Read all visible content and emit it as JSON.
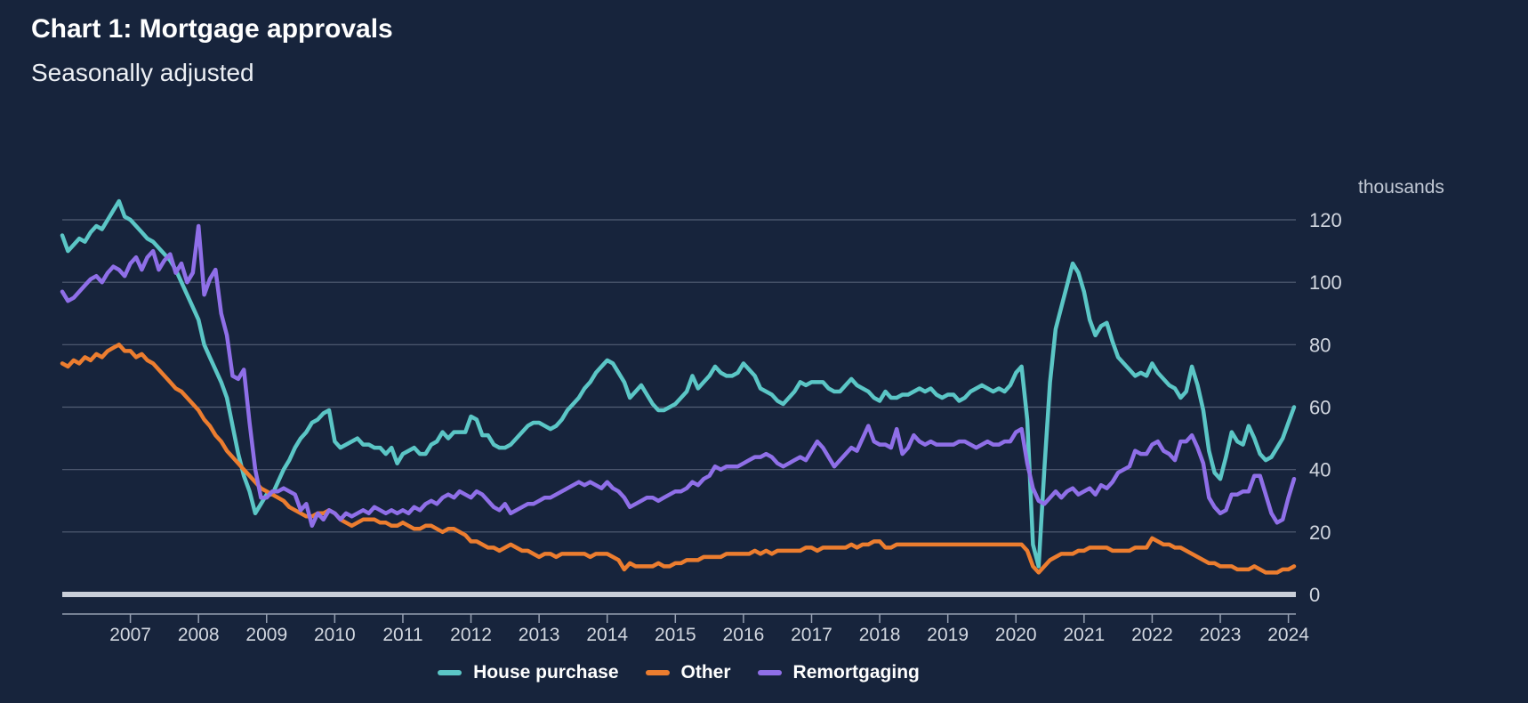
{
  "page": {
    "title": "Chart 1: Mortgage approvals",
    "subtitle": "Seasonally adjusted",
    "unit_label": "thousands"
  },
  "colors": {
    "background": "#17243C",
    "grid": "#535E74",
    "zero_line": "#C9CED8",
    "axis": "#96A0B2",
    "tick_label": "#D2D7E0",
    "teal": "#5BC6C6",
    "orange": "#EC7D2F",
    "purple": "#8F6FE8"
  },
  "legend": {
    "items": [
      {
        "label": "House purchase"
      },
      {
        "label": "Other"
      },
      {
        "label": "Remortgaging"
      }
    ]
  },
  "chart_data": {
    "type": "line",
    "title": "Chart 1: Mortgage approvals",
    "subtitle": "Seasonally adjusted",
    "y_unit": "thousands",
    "ylim": [
      0,
      120
    ],
    "yticks": [
      0,
      20,
      40,
      60,
      80,
      100,
      120
    ],
    "x_tick_labels": [
      "2007",
      "2008",
      "2009",
      "2010",
      "2011",
      "2012",
      "2013",
      "2014",
      "2015",
      "2016",
      "2017",
      "2018",
      "2019",
      "2020",
      "2021",
      "2022",
      "2023",
      "2024"
    ],
    "x_start": "2006-01",
    "x_end": "2024-02",
    "frequency": "monthly",
    "grid": true,
    "legend_position": "bottom",
    "series": [
      {
        "name": "House purchase",
        "color": "#5BC6C6",
        "values": [
          115,
          110,
          112,
          114,
          113,
          116,
          118,
          117,
          120,
          123,
          126,
          121,
          120,
          118,
          116,
          114,
          113,
          111,
          109,
          107,
          104,
          100,
          96,
          92,
          88,
          80,
          76,
          72,
          68,
          63,
          54,
          45,
          38,
          33,
          26,
          29,
          32,
          32,
          36,
          40,
          43,
          47,
          50,
          52,
          55,
          56,
          58,
          59,
          49,
          47,
          48,
          49,
          50,
          48,
          48,
          47,
          47,
          45,
          47,
          42,
          45,
          46,
          47,
          45,
          45,
          48,
          49,
          52,
          50,
          52,
          52,
          52,
          57,
          56,
          51,
          51,
          48,
          47,
          47,
          48,
          50,
          52,
          54,
          55,
          55,
          54,
          53,
          54,
          56,
          59,
          61,
          63,
          66,
          68,
          71,
          73,
          75,
          74,
          71,
          68,
          63,
          65,
          67,
          64,
          61,
          59,
          59,
          60,
          61,
          63,
          65,
          70,
          66,
          68,
          70,
          73,
          71,
          70,
          70,
          71,
          74,
          72,
          70,
          66,
          65,
          64,
          62,
          61,
          63,
          65,
          68,
          67,
          68,
          68,
          68,
          66,
          65,
          65,
          67,
          69,
          67,
          66,
          65,
          63,
          62,
          65,
          63,
          63,
          64,
          64,
          65,
          66,
          65,
          66,
          64,
          63,
          64,
          64,
          62,
          63,
          65,
          66,
          67,
          66,
          65,
          66,
          65,
          67,
          71,
          73,
          56,
          16,
          9,
          40,
          68,
          85,
          92,
          99,
          106,
          103,
          97,
          88,
          83,
          86,
          87,
          81,
          76,
          74,
          72,
          70,
          71,
          70,
          74,
          71,
          69,
          67,
          66,
          63,
          65,
          73,
          67,
          59,
          46,
          39,
          37,
          44,
          52,
          49,
          48,
          54,
          50,
          45,
          43,
          44,
          47,
          50,
          55,
          60
        ]
      },
      {
        "name": "Other",
        "color": "#EC7D2F",
        "values": [
          74,
          73,
          75,
          74,
          76,
          75,
          77,
          76,
          78,
          79,
          80,
          78,
          78,
          76,
          77,
          75,
          74,
          72,
          70,
          68,
          66,
          65,
          63,
          61,
          59,
          56,
          54,
          51,
          49,
          46,
          44,
          42,
          40,
          38,
          36,
          34,
          33,
          32,
          31,
          30,
          28,
          27,
          26,
          25,
          25,
          26,
          26,
          27,
          26,
          24,
          23,
          22,
          23,
          24,
          24,
          24,
          23,
          23,
          22,
          22,
          23,
          22,
          21,
          21,
          22,
          22,
          21,
          20,
          21,
          21,
          20,
          19,
          17,
          17,
          16,
          15,
          15,
          14,
          15,
          16,
          15,
          14,
          14,
          13,
          12,
          13,
          13,
          12,
          13,
          13,
          13,
          13,
          13,
          12,
          13,
          13,
          13,
          12,
          11,
          8,
          10,
          9,
          9,
          9,
          9,
          10,
          9,
          9,
          10,
          10,
          11,
          11,
          11,
          12,
          12,
          12,
          12,
          13,
          13,
          13,
          13,
          13,
          14,
          13,
          14,
          13,
          14,
          14,
          14,
          14,
          14,
          15,
          15,
          14,
          15,
          15,
          15,
          15,
          15,
          16,
          15,
          16,
          16,
          17,
          17,
          15,
          15,
          16,
          16,
          16,
          16,
          16,
          16,
          16,
          16,
          16,
          16,
          16,
          16,
          16,
          16,
          16,
          16,
          16,
          16,
          16,
          16,
          16,
          16,
          16,
          14,
          9,
          7,
          9,
          11,
          12,
          13,
          13,
          13,
          14,
          14,
          15,
          15,
          15,
          15,
          14,
          14,
          14,
          14,
          15,
          15,
          15,
          18,
          17,
          16,
          16,
          15,
          15,
          14,
          13,
          12,
          11,
          10,
          10,
          9,
          9,
          9,
          8,
          8,
          8,
          9,
          8,
          7,
          7,
          7,
          8,
          8,
          9
        ]
      },
      {
        "name": "Remortgaging",
        "color": "#8F6FE8",
        "values": [
          97,
          94,
          95,
          97,
          99,
          101,
          102,
          100,
          103,
          105,
          104,
          102,
          106,
          108,
          104,
          108,
          110,
          104,
          107,
          109,
          103,
          106,
          100,
          103,
          118,
          96,
          101,
          104,
          90,
          83,
          70,
          69,
          72,
          55,
          40,
          31,
          31,
          33,
          33,
          34,
          33,
          32,
          27,
          29,
          22,
          26,
          24,
          27,
          26,
          24,
          26,
          25,
          26,
          27,
          26,
          28,
          27,
          26,
          27,
          26,
          27,
          26,
          28,
          27,
          29,
          30,
          29,
          31,
          32,
          31,
          33,
          32,
          31,
          33,
          32,
          30,
          28,
          27,
          29,
          26,
          27,
          28,
          29,
          29,
          30,
          31,
          31,
          32,
          33,
          34,
          35,
          36,
          35,
          36,
          35,
          34,
          36,
          34,
          33,
          31,
          28,
          29,
          30,
          31,
          31,
          30,
          31,
          32,
          33,
          33,
          34,
          36,
          35,
          37,
          38,
          41,
          40,
          41,
          41,
          41,
          42,
          43,
          44,
          44,
          45,
          44,
          42,
          41,
          42,
          43,
          44,
          43,
          46,
          49,
          47,
          44,
          41,
          43,
          45,
          47,
          46,
          50,
          54,
          49,
          48,
          48,
          47,
          53,
          45,
          47,
          51,
          49,
          48,
          49,
          48,
          48,
          48,
          48,
          49,
          49,
          48,
          47,
          48,
          49,
          48,
          48,
          49,
          49,
          52,
          53,
          42,
          34,
          30,
          29,
          31,
          33,
          31,
          33,
          34,
          32,
          33,
          34,
          32,
          35,
          34,
          36,
          39,
          40,
          41,
          46,
          45,
          45,
          48,
          49,
          46,
          45,
          43,
          49,
          49,
          51,
          47,
          42,
          31,
          28,
          26,
          27,
          32,
          32,
          33,
          33,
          38,
          38,
          32,
          26,
          23,
          24,
          31,
          37
        ]
      }
    ]
  }
}
